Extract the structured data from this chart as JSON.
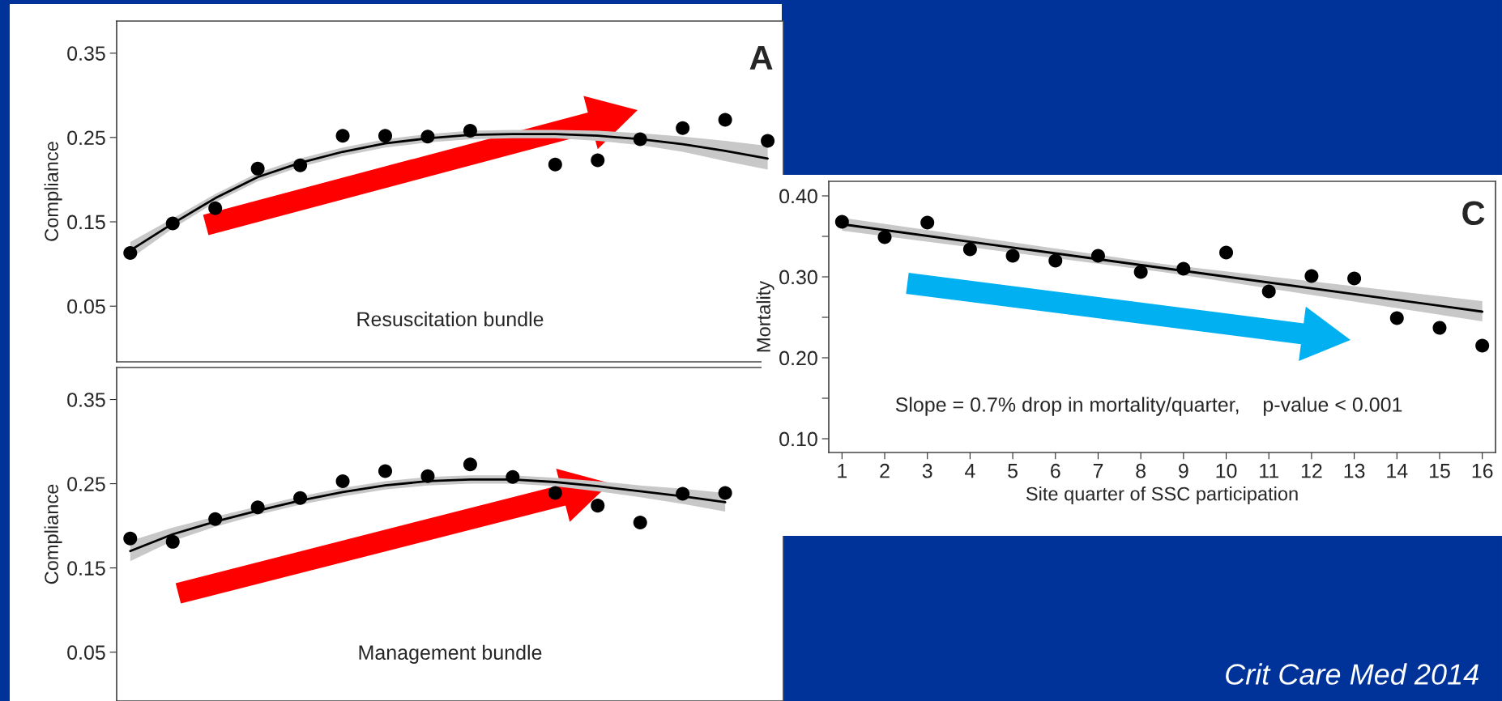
{
  "chart_data": [
    {
      "type": "scatter",
      "categories": [
        null,
        null,
        null,
        null,
        null,
        null,
        null,
        null,
        null,
        null,
        null,
        null,
        null,
        null,
        null,
        null
      ],
      "ylabel": "Compliance",
      "ylim": [
        -0.016,
        0.388
      ],
      "yticks": [
        0.05,
        0.15,
        0.25,
        0.35
      ],
      "tick_labels": "y",
      "grid": false,
      "legend": false,
      "annotations": [
        "A",
        "Resuscitation bundle"
      ],
      "series": [
        {
          "type": "scatter",
          "color": "#000000",
          "values": [
            0.113,
            0.148,
            0.166,
            0.213,
            0.217,
            0.252,
            0.252,
            0.251,
            0.258,
            null,
            0.218,
            0.223,
            0.248,
            0.261,
            0.271,
            0.246
          ]
        },
        {
          "type": "line",
          "color": "#000000",
          "values": [
            0.116,
            0.148,
            0.178,
            0.203,
            0.22,
            0.233,
            0.243,
            0.249,
            0.253,
            0.254,
            0.254,
            0.252,
            0.248,
            0.242,
            0.234,
            0.225
          ],
          "lower": [
            0.106,
            0.142,
            0.173,
            0.198,
            0.215,
            0.228,
            0.238,
            0.244,
            0.248,
            0.249,
            0.249,
            0.246,
            0.241,
            0.233,
            0.222,
            0.212
          ],
          "upper": [
            0.126,
            0.154,
            0.183,
            0.208,
            0.225,
            0.238,
            0.248,
            0.254,
            0.258,
            0.259,
            0.259,
            0.258,
            0.255,
            0.251,
            0.246,
            0.24
          ]
        }
      ]
    },
    {
      "type": "scatter",
      "categories": [
        null,
        null,
        null,
        null,
        null,
        null,
        null,
        null,
        null,
        null,
        null,
        null,
        null,
        null,
        null,
        null
      ],
      "ylabel": "Compliance",
      "ylim": [
        -0.008,
        0.388
      ],
      "yticks": [
        0.05,
        0.15,
        0.25,
        0.35
      ],
      "tick_labels": "y",
      "grid": false,
      "legend": false,
      "annotations": [
        "Management bundle"
      ],
      "series": [
        {
          "type": "scatter",
          "color": "#000000",
          "values": [
            0.185,
            0.181,
            0.208,
            0.222,
            0.233,
            0.253,
            0.265,
            0.259,
            0.273,
            0.258,
            0.239,
            0.224,
            0.204,
            0.238,
            0.239,
            null
          ]
        },
        {
          "type": "line",
          "color": "#000000",
          "values": [
            0.17,
            0.19,
            0.205,
            0.218,
            0.23,
            0.24,
            0.248,
            0.253,
            0.255,
            0.255,
            0.252,
            0.247,
            0.241,
            0.235,
            0.228,
            null
          ],
          "lower": [
            0.158,
            0.182,
            0.199,
            0.213,
            0.225,
            0.235,
            0.243,
            0.248,
            0.25,
            0.25,
            0.247,
            0.241,
            0.234,
            0.226,
            0.217,
            null
          ],
          "upper": [
            0.182,
            0.198,
            0.211,
            0.223,
            0.235,
            0.245,
            0.253,
            0.258,
            0.26,
            0.26,
            0.257,
            0.253,
            0.248,
            0.244,
            0.239,
            null
          ]
        }
      ]
    },
    {
      "type": "scatter",
      "xlabel": "Site quarter of SSC participation",
      "ylabel": "Mortality",
      "xlim": [
        0.69,
        16.31
      ],
      "ylim": [
        0.083,
        0.418
      ],
      "xticks": [
        1,
        2,
        3,
        4,
        5,
        6,
        7,
        8,
        9,
        10,
        11,
        12,
        13,
        14,
        15,
        16
      ],
      "yticks": [
        {
          "value": 0.1,
          "label": "0.10"
        },
        {
          "value": 0.15,
          "label": null
        },
        {
          "value": 0.2,
          "label": "0.20"
        },
        {
          "value": 0.25,
          "label": null
        },
        {
          "value": 0.3,
          "label": "0.30"
        },
        {
          "value": 0.35,
          "label": null
        },
        {
          "value": 0.4,
          "label": "0.40"
        }
      ],
      "grid": false,
      "legend": false,
      "annotations": [
        "C",
        "Slope = 0.7% drop in mortality/quarter,    p-value < 0.001",
        "Crit Care Med 2014"
      ],
      "series": [
        {
          "type": "scatter",
          "color": "#000000",
          "x": [
            1,
            2,
            3,
            4,
            5,
            6,
            7,
            8,
            9,
            10,
            11,
            12,
            13,
            14,
            15,
            16
          ],
          "values": [
            0.368,
            0.349,
            0.367,
            0.334,
            0.326,
            0.32,
            0.326,
            0.306,
            0.31,
            0.33,
            0.282,
            0.301,
            0.298,
            0.249,
            0.237,
            0.215
          ]
        },
        {
          "type": "line",
          "color": "#000000",
          "x": [
            1,
            8.5,
            16
          ],
          "values": [
            0.365,
            0.311,
            0.257
          ],
          "lower": [
            0.357,
            0.306,
            0.245
          ],
          "upper": [
            0.373,
            0.316,
            0.27
          ]
        }
      ]
    }
  ]
}
